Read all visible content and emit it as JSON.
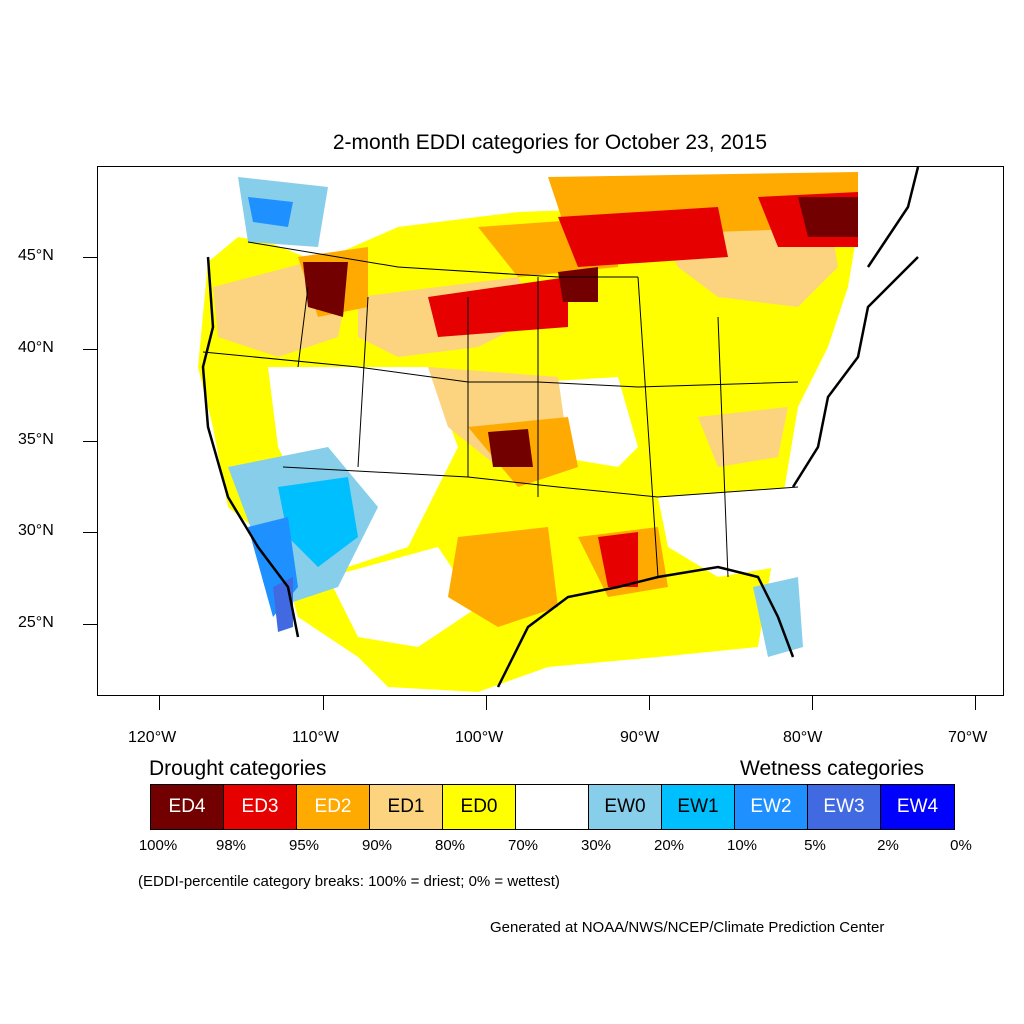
{
  "title": "2-month EDDI categories for October 23, 2015",
  "y_axis_labels": [
    "45°N",
    "40°N",
    "35°N",
    "30°N",
    "25°N"
  ],
  "x_axis_labels": [
    "120°W",
    "110°W",
    "100°W",
    "90°W",
    "80°W",
    "70°W"
  ],
  "legend": {
    "drought_heading": "Drought categories",
    "wetness_heading": "Wetness categories",
    "categories": [
      {
        "label": "ED4",
        "color": "#730000",
        "text_color": "#ffffff"
      },
      {
        "label": "ED3",
        "color": "#e60000",
        "text_color": "#ffffff"
      },
      {
        "label": "ED2",
        "color": "#ffaa00",
        "text_color": "#ffffff"
      },
      {
        "label": "ED1",
        "color": "#fcd37f",
        "text_color": "#000000"
      },
      {
        "label": "ED0",
        "color": "#ffff00",
        "text_color": "#000000"
      },
      {
        "label": "",
        "color": "#ffffff",
        "text_color": "#000000"
      },
      {
        "label": "EW0",
        "color": "#87ceeb",
        "text_color": "#000000"
      },
      {
        "label": "EW1",
        "color": "#00bfff",
        "text_color": "#000000"
      },
      {
        "label": "EW2",
        "color": "#1e90ff",
        "text_color": "#ffffff"
      },
      {
        "label": "EW3",
        "color": "#4169e1",
        "text_color": "#ffffff"
      },
      {
        "label": "EW4",
        "color": "#0000ff",
        "text_color": "#ffffff"
      }
    ],
    "breaks": [
      "100%",
      "98%",
      "95%",
      "90%",
      "80%",
      "70%",
      "30%",
      "20%",
      "10%",
      "5%",
      "2%",
      "0%"
    ]
  },
  "note": "(EDDI-percentile category breaks: 100% = driest; 0% = wettest)",
  "credit": "Generated at NOAA/NWS/NCEP/Climate Prediction Center"
}
